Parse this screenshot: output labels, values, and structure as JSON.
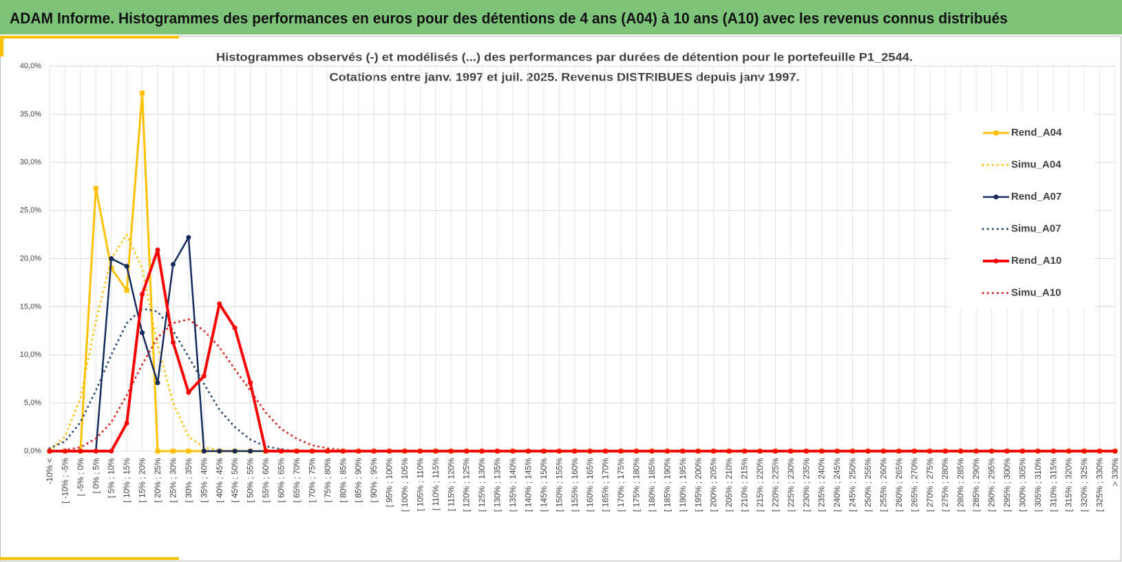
{
  "header": {
    "title": "ADAM Informe. Histogrammes des performances en euros pour des détentions de 4 ans (A04) à 10 ans (A10) avec les revenus connus distribués"
  },
  "chart_data": {
    "type": "line",
    "title": [
      "Histogrammes observés (-) et modélisés (...) des performances par durées de détention pour  le portefeuille P1_2544.",
      "Cotations entre janv. 1997 et juil. 2025. Revenus DISTRIBUES depuis janv 1997."
    ],
    "categories": [
      "-10% <",
      "[ -10% ; -5%",
      "[ -5% ; 0%",
      "[ 0% ; 5%",
      "[ 5% ; 10%",
      "[ 10% ; 15%",
      "[ 15% ; 20%",
      "[ 20% ; 25%",
      "[ 25% ; 30%",
      "[ 30% ; 35%",
      "[ 35% ; 40%",
      "[ 40% ; 45%",
      "[ 45% ; 50%",
      "[ 50% ; 55%",
      "[ 55% ; 60%",
      "[ 60% ; 65%",
      "[ 65% ; 70%",
      "[ 70% ; 75%",
      "[ 75% ; 80%",
      "[ 80% ; 85%",
      "[ 85% ; 90%",
      "[ 90% ; 95%",
      "[ 95% ; 100%",
      "[ 100% ; 105%",
      "[ 105% ; 110%",
      "[ 110% ; 115%",
      "[ 115% ; 120%",
      "[ 120% ; 125%",
      "[ 125% ; 130%",
      "[ 130% ; 135%",
      "[ 135% ; 140%",
      "[ 140% ; 145%",
      "[ 145% ; 150%",
      "[ 150% ; 155%",
      "[ 155% ; 160%",
      "[ 160% ; 165%",
      "[ 165% ; 170%",
      "[ 170% ; 175%",
      "[ 175% ; 180%",
      "[ 180% ; 185%",
      "[ 185% ; 190%",
      "[ 190% ; 195%",
      "[ 195% ; 200%",
      "[ 200% ; 205%",
      "[ 205% ; 210%",
      "[ 210% ; 215%",
      "[ 215% ; 220%",
      "[ 220% ; 225%",
      "[ 225% ; 230%",
      "[ 230% ; 235%",
      "[ 235% ; 240%",
      "[ 240% ; 245%",
      "[ 245% ; 250%",
      "[ 250% ; 255%",
      "[ 255% ; 260%",
      "[ 260% ; 265%",
      "[ 265% ; 270%",
      "[ 270% ; 275%",
      "[ 275% ; 280%",
      "[ 280% ; 285%",
      "[ 285% ; 290%",
      "[ 290% ; 295%",
      "[ 295% ; 300%",
      "[ 300% ; 305%",
      "[ 305% ; 310%",
      "[ 310% ; 315%",
      "[ 315% ; 320%",
      "[ 320% ; 325%",
      "[ 325% ; 330%",
      "> 330%"
    ],
    "series": [
      {
        "name": "Rend_A04",
        "color": "#ffc000",
        "style": "solid",
        "marker": "square",
        "width": 3,
        "values": [
          0,
          0,
          0,
          27.3,
          19.0,
          16.7,
          37.2,
          0,
          0,
          0,
          0,
          0,
          0,
          0,
          0,
          0,
          0,
          0,
          0,
          0,
          0,
          0,
          0,
          0,
          0,
          0,
          0,
          0,
          0,
          0,
          0,
          0,
          0,
          0,
          0,
          0,
          0,
          0,
          0,
          0,
          0,
          0,
          0,
          0,
          0,
          0,
          0,
          0,
          0,
          0,
          0,
          0,
          0,
          0,
          0,
          0,
          0,
          0,
          0,
          0,
          0,
          0,
          0,
          0,
          0,
          0,
          0,
          0,
          0,
          0
        ]
      },
      {
        "name": "Simu_A04",
        "color": "#ffc000",
        "style": "dotted",
        "width": 3,
        "values": [
          0,
          1.5,
          5.5,
          13.5,
          20.0,
          22.5,
          19.0,
          11.0,
          5.0,
          1.5,
          0.4,
          0.1,
          0,
          0,
          0,
          0,
          0,
          0,
          0,
          0,
          0,
          0,
          0,
          0,
          0,
          0,
          0,
          0,
          0,
          0,
          0,
          0,
          0,
          0,
          0,
          0,
          0,
          0,
          0,
          0,
          0,
          0,
          0,
          0,
          0,
          0,
          0,
          0,
          0,
          0,
          0,
          0,
          0,
          0,
          0,
          0,
          0,
          0,
          0,
          0,
          0,
          0,
          0,
          0,
          0,
          0,
          0,
          0,
          0,
          0
        ]
      },
      {
        "name": "Rend_A07",
        "color": "#142a5c",
        "style": "solid",
        "marker": "circle",
        "width": 2.5,
        "values": [
          0,
          0,
          0,
          0,
          20.0,
          19.2,
          12.3,
          7.1,
          19.4,
          22.2,
          0,
          0,
          0,
          0,
          0,
          0,
          0,
          0,
          0,
          0,
          0,
          0,
          0,
          0,
          0,
          0,
          0,
          0,
          0,
          0,
          0,
          0,
          0,
          0,
          0,
          0,
          0,
          0,
          0,
          0,
          0,
          0,
          0,
          0,
          0,
          0,
          0,
          0,
          0,
          0,
          0,
          0,
          0,
          0,
          0,
          0,
          0,
          0,
          0,
          0,
          0,
          0,
          0,
          0,
          0,
          0,
          0,
          0,
          0,
          0
        ]
      },
      {
        "name": "Simu_A07",
        "color": "#2e4a7a",
        "style": "dotted",
        "width": 3,
        "values": [
          0.3,
          1.0,
          3.0,
          6.3,
          10.0,
          13.3,
          14.8,
          14.5,
          12.5,
          9.8,
          7.0,
          4.3,
          2.5,
          1.2,
          0.5,
          0.2,
          0,
          0,
          0,
          0,
          0,
          0,
          0,
          0,
          0,
          0,
          0,
          0,
          0,
          0,
          0,
          0,
          0,
          0,
          0,
          0,
          0,
          0,
          0,
          0,
          0,
          0,
          0,
          0,
          0,
          0,
          0,
          0,
          0,
          0,
          0,
          0,
          0,
          0,
          0,
          0,
          0,
          0,
          0,
          0,
          0,
          0,
          0,
          0,
          0,
          0,
          0,
          0,
          0,
          0
        ]
      },
      {
        "name": "Rend_A10",
        "color": "#ff0000",
        "style": "solid",
        "marker": "circle",
        "width": 4,
        "values": [
          0,
          0,
          0,
          0,
          0,
          2.9,
          16.3,
          20.9,
          11.3,
          6.1,
          7.8,
          15.3,
          12.8,
          7.1,
          0,
          0,
          0,
          0,
          0,
          0,
          0,
          0,
          0,
          0,
          0,
          0,
          0,
          0,
          0,
          0,
          0,
          0,
          0,
          0,
          0,
          0,
          0,
          0,
          0,
          0,
          0,
          0,
          0,
          0,
          0,
          0,
          0,
          0,
          0,
          0,
          0,
          0,
          0,
          0,
          0,
          0,
          0,
          0,
          0,
          0,
          0,
          0,
          0,
          0,
          0,
          0,
          0,
          0,
          0,
          0
        ]
      },
      {
        "name": "Simu_A10",
        "color": "#e02020",
        "style": "dotted",
        "width": 3,
        "values": [
          0,
          0.1,
          0.4,
          1.3,
          3.0,
          5.8,
          9.0,
          11.8,
          13.3,
          13.7,
          12.5,
          10.8,
          8.5,
          6.3,
          4.0,
          2.3,
          1.3,
          0.6,
          0.3,
          0.1,
          0,
          0,
          0,
          0,
          0,
          0,
          0,
          0,
          0,
          0,
          0,
          0,
          0,
          0,
          0,
          0,
          0,
          0,
          0,
          0,
          0,
          0,
          0,
          0,
          0,
          0,
          0,
          0,
          0,
          0,
          0,
          0,
          0,
          0,
          0,
          0,
          0,
          0,
          0,
          0,
          0,
          0,
          0,
          0,
          0,
          0,
          0,
          0,
          0,
          0
        ]
      }
    ],
    "ylim": [
      0,
      40
    ],
    "yticks": [
      {
        "value": 0,
        "label": "0,0%"
      },
      {
        "value": 5,
        "label": "5,0%"
      },
      {
        "value": 10,
        "label": "10,0%"
      },
      {
        "value": 15,
        "label": "15,0%"
      },
      {
        "value": 20,
        "label": "20,0%"
      },
      {
        "value": 25,
        "label": "25,0%"
      },
      {
        "value": 30,
        "label": "30,0%"
      },
      {
        "value": 35,
        "label": "35,0%"
      },
      {
        "value": 40,
        "label": "40,0%"
      }
    ],
    "grid": true,
    "legend": "right"
  }
}
